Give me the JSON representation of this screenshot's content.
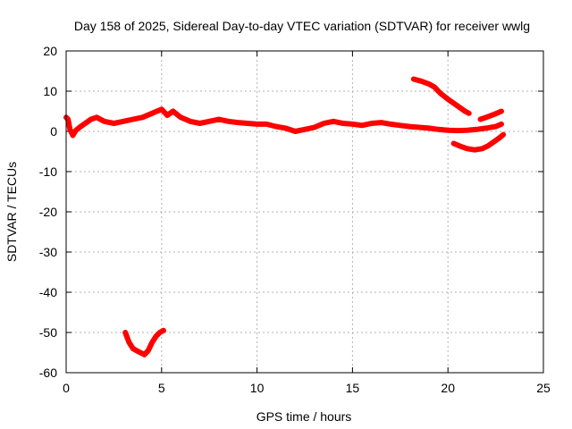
{
  "chart_data": {
    "type": "line",
    "title": "Day 158 of 2025, Sidereal Day-to-day VTEC variation (SDTVAR) for receiver wwlg",
    "xlabel": "GPS time / hours",
    "ylabel": "SDTVAR / TECUs",
    "xlim": [
      0,
      25
    ],
    "ylim": [
      -60,
      20
    ],
    "xticks": [
      0,
      5,
      10,
      15,
      20,
      25
    ],
    "yticks": [
      -60,
      -50,
      -40,
      -30,
      -20,
      -10,
      0,
      10,
      20
    ],
    "grid": true,
    "series_color": "#ff0000",
    "series": [
      {
        "name": "main-band",
        "points": [
          [
            0.0,
            3.5
          ],
          [
            0.1,
            3.0
          ],
          [
            0.2,
            0.5
          ],
          [
            0.35,
            -1.0
          ],
          [
            0.5,
            0.2
          ],
          [
            0.7,
            1.0
          ],
          [
            1.0,
            2.0
          ],
          [
            1.3,
            3.0
          ],
          [
            1.6,
            3.5
          ],
          [
            2.0,
            2.5
          ],
          [
            2.5,
            2.0
          ],
          [
            3.0,
            2.5
          ],
          [
            3.5,
            3.0
          ],
          [
            4.0,
            3.5
          ],
          [
            4.5,
            4.5
          ],
          [
            5.0,
            5.5
          ],
          [
            5.3,
            4.0
          ],
          [
            5.6,
            5.0
          ],
          [
            6.0,
            3.5
          ],
          [
            6.5,
            2.5
          ],
          [
            7.0,
            2.0
          ],
          [
            7.5,
            2.5
          ],
          [
            8.0,
            3.0
          ],
          [
            8.5,
            2.5
          ],
          [
            9.0,
            2.2
          ],
          [
            9.5,
            2.0
          ],
          [
            10.0,
            1.8
          ],
          [
            10.5,
            1.8
          ],
          [
            11.0,
            1.2
          ],
          [
            11.5,
            0.8
          ],
          [
            12.0,
            0.0
          ],
          [
            12.5,
            0.5
          ],
          [
            13.0,
            1.0
          ],
          [
            13.5,
            2.0
          ],
          [
            14.0,
            2.5
          ],
          [
            14.5,
            2.0
          ],
          [
            15.0,
            1.8
          ],
          [
            15.5,
            1.5
          ],
          [
            16.0,
            2.0
          ],
          [
            16.5,
            2.2
          ],
          [
            17.0,
            1.8
          ],
          [
            17.5,
            1.5
          ],
          [
            18.0,
            1.2
          ],
          [
            18.5,
            1.0
          ],
          [
            19.0,
            0.8
          ],
          [
            19.5,
            0.5
          ],
          [
            20.0,
            0.3
          ],
          [
            20.5,
            0.2
          ],
          [
            21.0,
            0.3
          ],
          [
            21.5,
            0.5
          ],
          [
            22.0,
            0.8
          ],
          [
            22.5,
            1.2
          ],
          [
            22.8,
            1.8
          ]
        ]
      },
      {
        "name": "upper-late-arc",
        "points": [
          [
            18.2,
            13.0
          ],
          [
            18.6,
            12.5
          ],
          [
            19.0,
            11.8
          ],
          [
            19.3,
            11.0
          ],
          [
            19.6,
            9.5
          ],
          [
            20.0,
            8.0
          ],
          [
            20.3,
            7.0
          ],
          [
            20.6,
            6.0
          ],
          [
            20.9,
            5.0
          ],
          [
            21.1,
            4.5
          ]
        ]
      },
      {
        "name": "upper-right-tail",
        "points": [
          [
            21.7,
            3.0
          ],
          [
            22.0,
            3.5
          ],
          [
            22.4,
            4.2
          ],
          [
            22.8,
            5.0
          ]
        ]
      },
      {
        "name": "lower-late-arc",
        "points": [
          [
            20.3,
            -3.0
          ],
          [
            20.7,
            -3.8
          ],
          [
            21.0,
            -4.3
          ],
          [
            21.4,
            -4.6
          ],
          [
            21.8,
            -4.3
          ],
          [
            22.1,
            -3.6
          ],
          [
            22.4,
            -2.6
          ],
          [
            22.7,
            -1.6
          ],
          [
            22.9,
            -0.8
          ]
        ]
      },
      {
        "name": "outlier-dip",
        "points": [
          [
            3.1,
            -50.0
          ],
          [
            3.3,
            -52.5
          ],
          [
            3.5,
            -54.0
          ],
          [
            3.8,
            -54.8
          ],
          [
            4.1,
            -55.5
          ],
          [
            4.3,
            -54.5
          ],
          [
            4.5,
            -52.5
          ],
          [
            4.7,
            -51.0
          ],
          [
            4.9,
            -50.0
          ],
          [
            5.1,
            -49.5
          ]
        ]
      }
    ]
  }
}
